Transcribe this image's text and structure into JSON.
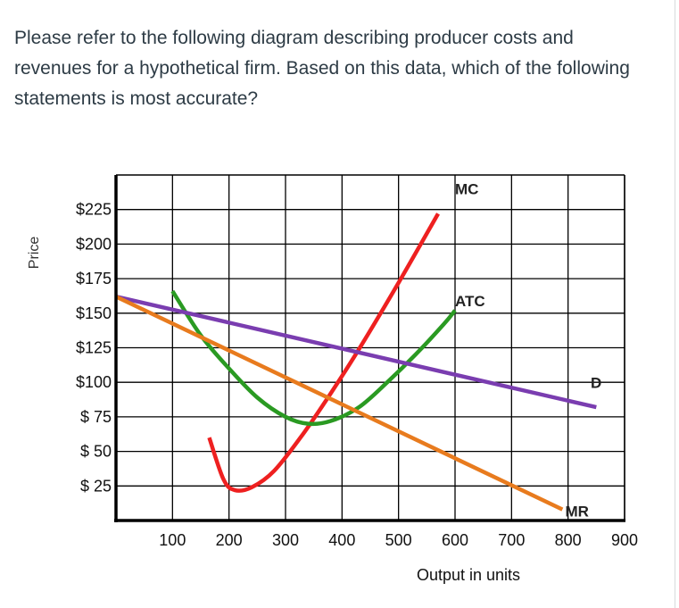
{
  "question": "Please refer to the following diagram describing producer costs and revenues for a hypothetical firm.  Based on this data, which of the following statements is most accurate?",
  "chart_data": {
    "type": "line",
    "title": "",
    "xlabel": "Output in units",
    "ylabel": "Price",
    "xlim": [
      0,
      900
    ],
    "ylim": [
      0,
      250
    ],
    "grid": true,
    "x_ticks": [
      100,
      200,
      300,
      400,
      500,
      600,
      700,
      800,
      900
    ],
    "x_tick_labels": [
      "100",
      "200",
      "300",
      "400",
      "500",
      "600",
      "700",
      "800",
      "900"
    ],
    "y_ticks": [
      25,
      50,
      75,
      100,
      125,
      150,
      175,
      200,
      225
    ],
    "y_tick_labels": [
      "$ 25",
      "$ 50",
      "$ 75",
      "$100",
      "$125",
      "$150",
      "$175",
      "$200",
      "$225"
    ],
    "series": [
      {
        "name": "MC",
        "color": "#ee2020",
        "label_at": [
          600,
          236
        ],
        "points": [
          [
            165,
            60
          ],
          [
            190,
            30
          ],
          [
            210,
            22
          ],
          [
            240,
            24
          ],
          [
            280,
            36
          ],
          [
            330,
            62
          ],
          [
            380,
            92
          ],
          [
            430,
            124
          ],
          [
            500,
            172
          ],
          [
            570,
            222
          ]
        ]
      },
      {
        "name": "ATC",
        "color": "#2a9a22",
        "label_at": [
          600,
          155
        ],
        "points": [
          [
            100,
            166
          ],
          [
            150,
            134
          ],
          [
            200,
            110
          ],
          [
            250,
            89
          ],
          [
            300,
            75
          ],
          [
            340,
            70
          ],
          [
            380,
            72
          ],
          [
            430,
            82
          ],
          [
            480,
            100
          ],
          [
            530,
            120
          ],
          [
            580,
            142
          ],
          [
            600,
            152
          ]
        ]
      },
      {
        "name": "D",
        "color": "#7a3db0",
        "label_at": [
          840,
          96
        ],
        "points": [
          [
            0,
            162
          ],
          [
            850,
            82
          ]
        ]
      },
      {
        "name": "MR",
        "color": "#e87b1e",
        "label_at": [
          795,
          3
        ],
        "points": [
          [
            0,
            162
          ],
          [
            790,
            8
          ]
        ]
      }
    ]
  }
}
